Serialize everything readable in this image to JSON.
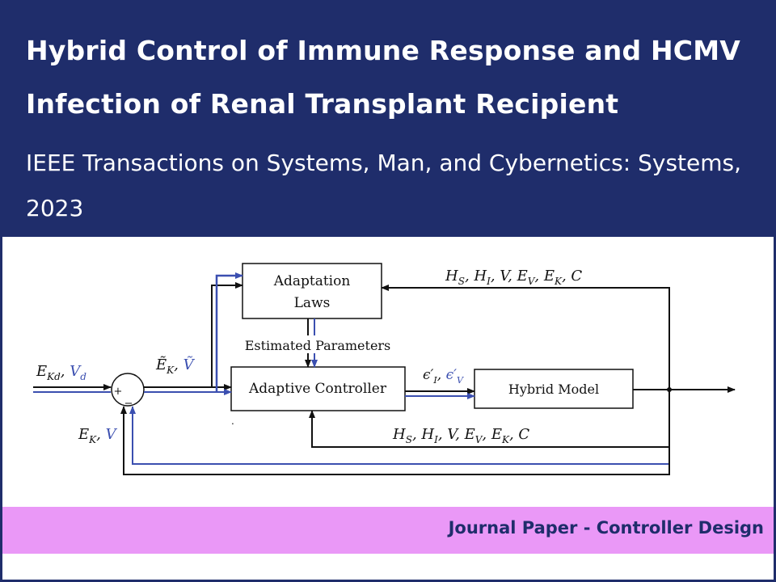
{
  "header": {
    "title": "Hybrid Control of Immune Response and HCMV Infection of Renal Transplant Recipient",
    "venue": "IEEE Transactions on Systems, Man, and Cybernetics: Systems, 2023"
  },
  "diagram": {
    "blocks": {
      "adaptation_line1": "Adaptation",
      "adaptation_line2": "Laws",
      "controller": "Adaptive Controller",
      "model": "Hybrid Model"
    },
    "labels": {
      "estimated": "Estimated Parameters",
      "sum_plus": "+",
      "sum_minus": "−",
      "dot": "."
    },
    "colors": {
      "black_line": "#111111",
      "blue_line": "#3b4fb0"
    }
  },
  "tag": {
    "text": "Journal Paper - Controller Design"
  }
}
